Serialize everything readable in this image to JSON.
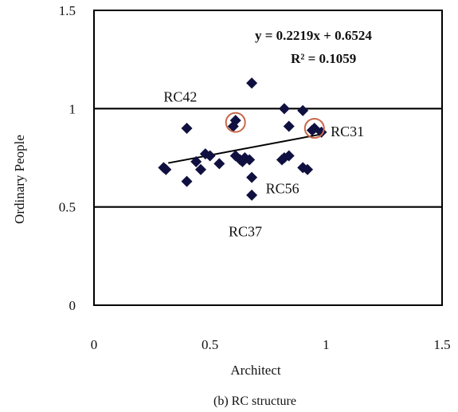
{
  "chart_data": {
    "type": "scatter",
    "xlabel": "Architect",
    "ylabel": "Ordinary People",
    "xlim": [
      0,
      1.5
    ],
    "ylim": [
      0,
      1.5
    ],
    "x_ticks": [
      "0",
      "0.5",
      "1",
      "1.5"
    ],
    "y_ticks": [
      "0",
      "0.5",
      "1",
      "1.5"
    ],
    "grid": "horizontal lines at 0.5 and 1",
    "caption": "(b) RC structure",
    "trendline": {
      "equation": "y = 0.2219x + 0.6524",
      "r_squared": "R² = 0.1059",
      "slope": 0.2219,
      "intercept": 0.6524,
      "x_range": [
        0.32,
        0.98
      ]
    },
    "points": [
      {
        "x": 0.3,
        "y": 0.7
      },
      {
        "x": 0.31,
        "y": 0.69
      },
      {
        "x": 0.4,
        "y": 0.63
      },
      {
        "x": 0.4,
        "y": 0.9
      },
      {
        "x": 0.44,
        "y": 0.73
      },
      {
        "x": 0.46,
        "y": 0.69
      },
      {
        "x": 0.48,
        "y": 0.77
      },
      {
        "x": 0.5,
        "y": 0.76
      },
      {
        "x": 0.54,
        "y": 0.72
      },
      {
        "x": 0.6,
        "y": 0.91
      },
      {
        "x": 0.61,
        "y": 0.94
      },
      {
        "x": 0.61,
        "y": 0.76
      },
      {
        "x": 0.63,
        "y": 0.74
      },
      {
        "x": 0.64,
        "y": 0.73
      },
      {
        "x": 0.65,
        "y": 0.75
      },
      {
        "x": 0.67,
        "y": 0.74
      },
      {
        "x": 0.68,
        "y": 1.13
      },
      {
        "x": 0.68,
        "y": 0.65
      },
      {
        "x": 0.68,
        "y": 0.56
      },
      {
        "x": 0.81,
        "y": 0.74
      },
      {
        "x": 0.82,
        "y": 1.0
      },
      {
        "x": 0.82,
        "y": 0.75
      },
      {
        "x": 0.84,
        "y": 0.76
      },
      {
        "x": 0.84,
        "y": 0.91
      },
      {
        "x": 0.9,
        "y": 0.99
      },
      {
        "x": 0.9,
        "y": 0.7
      },
      {
        "x": 0.92,
        "y": 0.69
      },
      {
        "x": 0.94,
        "y": 0.89
      },
      {
        "x": 0.95,
        "y": 0.9
      },
      {
        "x": 0.98,
        "y": 0.88
      }
    ],
    "highlighted": [
      {
        "label": "RC42",
        "x": 0.61,
        "y": 0.93
      },
      {
        "label": "RC31",
        "x": 0.95,
        "y": 0.9
      }
    ],
    "annotations": [
      {
        "text": "RC42",
        "x": 0.3,
        "y": 1.035
      },
      {
        "text": "RC31",
        "x": 1.02,
        "y": 0.86
      },
      {
        "text": "RC56",
        "x": 0.74,
        "y": 0.57
      },
      {
        "text": "RC37",
        "x": 0.58,
        "y": 0.35
      }
    ],
    "colors": {
      "points": "#101040",
      "lines": "#000000",
      "highlight_ring": "#c8684a"
    }
  }
}
